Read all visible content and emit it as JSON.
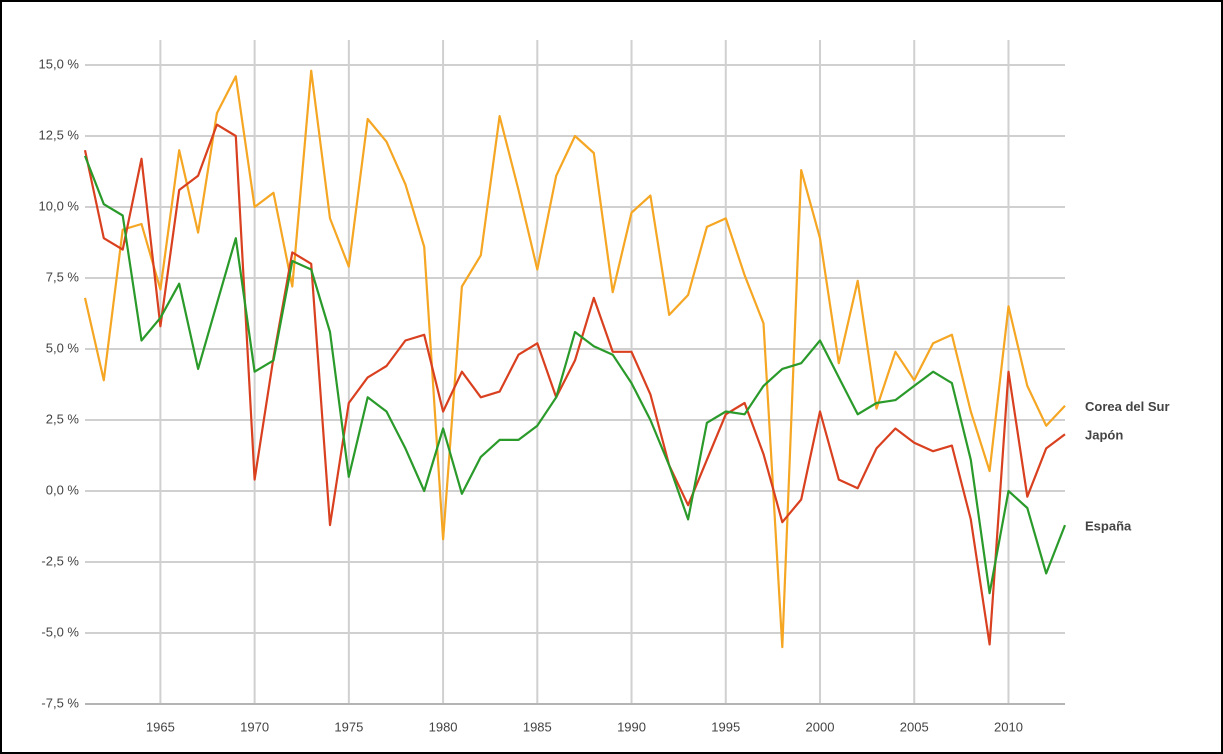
{
  "chart_data": {
    "type": "line",
    "x": [
      1961,
      1962,
      1963,
      1964,
      1965,
      1966,
      1967,
      1968,
      1969,
      1970,
      1971,
      1972,
      1973,
      1974,
      1975,
      1976,
      1977,
      1978,
      1979,
      1980,
      1981,
      1982,
      1983,
      1984,
      1985,
      1986,
      1987,
      1988,
      1989,
      1990,
      1991,
      1992,
      1993,
      1994,
      1995,
      1996,
      1997,
      1998,
      1999,
      2000,
      2001,
      2002,
      2003,
      2004,
      2005,
      2006,
      2007,
      2008,
      2009,
      2010,
      2011,
      2012,
      2013
    ],
    "series": [
      {
        "name": "Corea del Sur",
        "color": "#f5a623",
        "values": [
          6.8,
          3.9,
          9.2,
          9.4,
          7.1,
          12.0,
          9.1,
          13.3,
          14.6,
          10.0,
          10.5,
          7.2,
          14.8,
          9.6,
          7.9,
          13.1,
          12.3,
          10.8,
          8.6,
          -1.7,
          7.2,
          8.3,
          13.2,
          10.6,
          7.8,
          11.1,
          12.5,
          11.9,
          7.0,
          9.8,
          10.4,
          6.2,
          6.9,
          9.3,
          9.6,
          7.6,
          5.9,
          -5.5,
          11.3,
          8.9,
          4.5,
          7.4,
          2.9,
          4.9,
          3.9,
          5.2,
          5.5,
          2.8,
          0.7,
          6.5,
          3.7,
          2.3,
          3.0
        ]
      },
      {
        "name": "Japón",
        "color": "#d9401f",
        "values": [
          12.0,
          8.9,
          8.5,
          11.7,
          5.8,
          10.6,
          11.1,
          12.9,
          12.5,
          0.4,
          4.7,
          8.4,
          8.0,
          -1.2,
          3.1,
          4.0,
          4.4,
          5.3,
          5.5,
          2.8,
          4.2,
          3.3,
          3.5,
          4.8,
          5.2,
          3.3,
          4.6,
          6.8,
          4.9,
          4.9,
          3.4,
          0.9,
          -0.5,
          1.1,
          2.7,
          3.1,
          1.3,
          -1.1,
          -0.3,
          2.8,
          0.4,
          0.1,
          1.5,
          2.2,
          1.7,
          1.4,
          1.6,
          -1.0,
          -5.4,
          4.2,
          -0.2,
          1.5,
          2.0
        ]
      },
      {
        "name": "España",
        "color": "#2a9a2a",
        "values": [
          11.8,
          10.1,
          9.7,
          5.3,
          6.1,
          7.3,
          4.3,
          6.6,
          8.9,
          4.2,
          4.6,
          8.1,
          7.8,
          5.6,
          0.5,
          3.3,
          2.8,
          1.5,
          0.0,
          2.2,
          -0.1,
          1.2,
          1.8,
          1.8,
          2.3,
          3.3,
          5.6,
          5.1,
          4.8,
          3.8,
          2.5,
          0.9,
          -1.0,
          2.4,
          2.8,
          2.7,
          3.7,
          4.3,
          4.5,
          5.3,
          4.0,
          2.7,
          3.1,
          3.2,
          3.7,
          4.2,
          3.8,
          1.1,
          -3.6,
          0.0,
          -0.6,
          -2.9,
          -1.2
        ]
      }
    ],
    "xlim": [
      1961,
      2013
    ],
    "xticks": [
      1965,
      1970,
      1975,
      1980,
      1985,
      1990,
      1995,
      2000,
      2005,
      2010
    ],
    "ylim": [
      -7.5,
      15
    ],
    "yticks": [
      {
        "value": -7.5,
        "label": "-7,5 %"
      },
      {
        "value": -5,
        "label": "-5,0 %"
      },
      {
        "value": -2.5,
        "label": "-2,5 %"
      },
      {
        "value": 0,
        "label": "0,0 %"
      },
      {
        "value": 2.5,
        "label": "2,5 %"
      },
      {
        "value": 5,
        "label": "5,0 %"
      },
      {
        "value": 7.5,
        "label": "7,5 %"
      },
      {
        "value": 10,
        "label": "10,0 %"
      },
      {
        "value": 12.5,
        "label": "12,5 %"
      },
      {
        "value": 15,
        "label": "15,0 %"
      }
    ],
    "grid": true
  }
}
